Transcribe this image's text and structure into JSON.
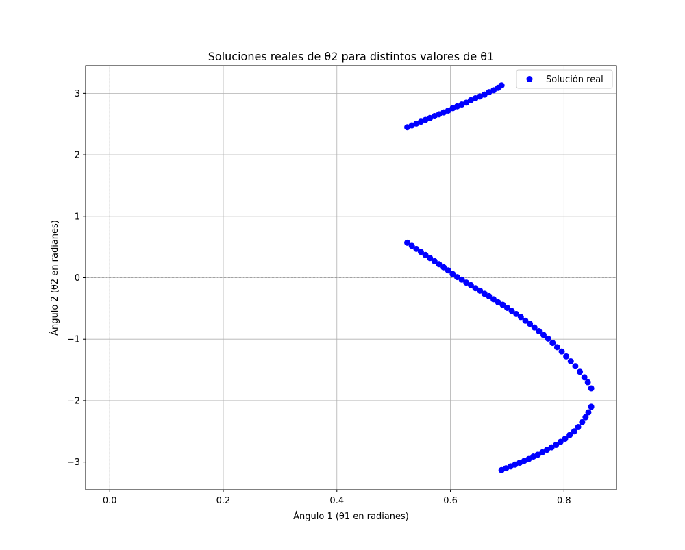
{
  "chart_data": {
    "type": "scatter",
    "title": "Soluciones reales de θ2 para distintos valores de θ1",
    "xlabel": "Ángulo 1 (θ1 en radianes)",
    "ylabel": "Ángulo 2 (θ2 en radianes)",
    "xlim": [
      -0.0425,
      0.8925
    ],
    "ylim": [
      -3.45,
      3.45
    ],
    "xticks": [
      0.0,
      0.2,
      0.4,
      0.6,
      0.8
    ],
    "xtick_labels": [
      "0.0",
      "0.2",
      "0.4",
      "0.6",
      "0.8"
    ],
    "yticks": [
      -3,
      -2,
      -1,
      0,
      1,
      2,
      3
    ],
    "ytick_labels": [
      "−3",
      "−2",
      "−1",
      "0",
      "1",
      "2",
      "3"
    ],
    "grid": true,
    "zero_lines": true,
    "legend": {
      "position": "top-right",
      "entries": [
        "Solución real"
      ]
    },
    "series": [
      {
        "name": "Solución real",
        "color": "#0000ff",
        "marker": "circle",
        "points": [
          [
            0.524,
            2.45
          ],
          [
            0.532,
            2.48
          ],
          [
            0.54,
            2.51
          ],
          [
            0.548,
            2.54
          ],
          [
            0.556,
            2.57
          ],
          [
            0.564,
            2.6
          ],
          [
            0.572,
            2.63
          ],
          [
            0.58,
            2.66
          ],
          [
            0.588,
            2.69
          ],
          [
            0.596,
            2.72
          ],
          [
            0.604,
            2.76
          ],
          [
            0.612,
            2.79
          ],
          [
            0.62,
            2.82
          ],
          [
            0.628,
            2.85
          ],
          [
            0.636,
            2.89
          ],
          [
            0.644,
            2.92
          ],
          [
            0.652,
            2.95
          ],
          [
            0.66,
            2.98
          ],
          [
            0.668,
            3.02
          ],
          [
            0.676,
            3.05
          ],
          [
            0.684,
            3.09
          ],
          [
            0.69,
            3.13
          ],
          [
            0.524,
            0.57
          ],
          [
            0.532,
            0.52
          ],
          [
            0.54,
            0.47
          ],
          [
            0.548,
            0.42
          ],
          [
            0.556,
            0.37
          ],
          [
            0.564,
            0.32
          ],
          [
            0.572,
            0.27
          ],
          [
            0.58,
            0.22
          ],
          [
            0.588,
            0.17
          ],
          [
            0.596,
            0.12
          ],
          [
            0.604,
            0.06
          ],
          [
            0.612,
            0.01
          ],
          [
            0.62,
            -0.03
          ],
          [
            0.628,
            -0.08
          ],
          [
            0.636,
            -0.12
          ],
          [
            0.644,
            -0.17
          ],
          [
            0.652,
            -0.21
          ],
          [
            0.66,
            -0.26
          ],
          [
            0.668,
            -0.3
          ],
          [
            0.676,
            -0.35
          ],
          [
            0.684,
            -0.4
          ],
          [
            0.692,
            -0.44
          ],
          [
            0.7,
            -0.49
          ],
          [
            0.708,
            -0.54
          ],
          [
            0.716,
            -0.59
          ],
          [
            0.724,
            -0.64
          ],
          [
            0.732,
            -0.7
          ],
          [
            0.74,
            -0.75
          ],
          [
            0.748,
            -0.81
          ],
          [
            0.756,
            -0.87
          ],
          [
            0.764,
            -0.93
          ],
          [
            0.772,
            -0.99
          ],
          [
            0.78,
            -1.06
          ],
          [
            0.788,
            -1.13
          ],
          [
            0.796,
            -1.2
          ],
          [
            0.804,
            -1.28
          ],
          [
            0.812,
            -1.36
          ],
          [
            0.82,
            -1.44
          ],
          [
            0.828,
            -1.53
          ],
          [
            0.836,
            -1.62
          ],
          [
            0.842,
            -1.7
          ],
          [
            0.848,
            -1.8
          ],
          [
            0.848,
            -2.1
          ],
          [
            0.843,
            -2.19
          ],
          [
            0.838,
            -2.27
          ],
          [
            0.832,
            -2.35
          ],
          [
            0.825,
            -2.43
          ],
          [
            0.818,
            -2.5
          ],
          [
            0.81,
            -2.56
          ],
          [
            0.802,
            -2.62
          ],
          [
            0.794,
            -2.67
          ],
          [
            0.786,
            -2.72
          ],
          [
            0.778,
            -2.76
          ],
          [
            0.77,
            -2.8
          ],
          [
            0.762,
            -2.84
          ],
          [
            0.754,
            -2.88
          ],
          [
            0.746,
            -2.91
          ],
          [
            0.738,
            -2.95
          ],
          [
            0.73,
            -2.98
          ],
          [
            0.722,
            -3.01
          ],
          [
            0.714,
            -3.04
          ],
          [
            0.706,
            -3.07
          ],
          [
            0.698,
            -3.1
          ],
          [
            0.69,
            -3.13
          ]
        ]
      }
    ]
  }
}
